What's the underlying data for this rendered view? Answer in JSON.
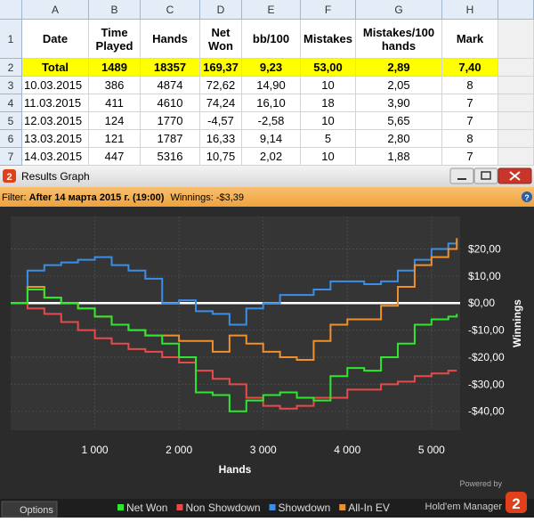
{
  "spreadsheet": {
    "columns": [
      "A",
      "B",
      "C",
      "D",
      "E",
      "F",
      "G",
      "H"
    ],
    "row_numbers": [
      "1",
      "2",
      "3",
      "4",
      "5",
      "6",
      "7"
    ],
    "header": [
      "Date",
      "Time Played",
      "Hands",
      "Net Won",
      "bb/100",
      "Mistakes",
      "Mistakes/100 hands",
      "Mark"
    ],
    "total": [
      "Total",
      "1489",
      "18357",
      "169,37",
      "9,23",
      "53,00",
      "2,89",
      "7,40"
    ],
    "rows": [
      [
        "10.03.2015",
        "386",
        "4874",
        "72,62",
        "14,90",
        "10",
        "2,05",
        "8"
      ],
      [
        "11.03.2015",
        "411",
        "4610",
        "74,24",
        "16,10",
        "18",
        "3,90",
        "7"
      ],
      [
        "12.03.2015",
        "124",
        "1770",
        "-4,57",
        "-2,58",
        "10",
        "5,65",
        "7"
      ],
      [
        "13.03.2015",
        "121",
        "1787",
        "16,33",
        "9,14",
        "5",
        "2,80",
        "8"
      ],
      [
        "14.03.2015",
        "447",
        "5316",
        "10,75",
        "2,02",
        "10",
        "1,88",
        "7"
      ]
    ]
  },
  "window": {
    "title": "Results Graph",
    "filter_label": "Filter:",
    "filter": "After 14 марта 2015 г. (19:00)",
    "winnings": "Winnings: -$3,39",
    "options": "Options",
    "powered_by": "Powered by",
    "brand": "Hold'em Manager"
  },
  "chart_data": {
    "type": "line",
    "x_label": "Hands",
    "y_label": "Winnings",
    "x": [
      0,
      200,
      400,
      600,
      800,
      1000,
      1200,
      1400,
      1600,
      1800,
      2000,
      2200,
      2400,
      2600,
      2800,
      3000,
      3200,
      3400,
      3600,
      3800,
      4000,
      4200,
      4400,
      4600,
      4800,
      5000,
      5200,
      5300
    ],
    "series": [
      {
        "name": "Net Won",
        "color": "#2ee82e",
        "values": [
          0,
          5,
          2,
          0,
          -2,
          -5,
          -8,
          -10,
          -12,
          -15,
          -20,
          -33,
          -34,
          -40,
          -36,
          -34,
          -33,
          -35,
          -36,
          -27,
          -24,
          -25,
          -20,
          -15,
          -8,
          -6,
          -5,
          -4
        ]
      },
      {
        "name": "Non Showdown",
        "color": "#e84a4a",
        "values": [
          0,
          -2,
          -4,
          -7,
          -10,
          -13,
          -15,
          -17,
          -18,
          -20,
          -22,
          -25,
          -28,
          -30,
          -35,
          -38,
          -39,
          -38,
          -35,
          -35,
          -32,
          -32,
          -30,
          -29,
          -27,
          -26,
          -25,
          -25
        ]
      },
      {
        "name": "Showdown",
        "color": "#3a8ee8",
        "values": [
          0,
          12,
          14,
          15,
          16,
          17,
          14,
          12,
          9,
          0,
          1,
          -3,
          -4,
          -8,
          -2,
          0,
          3,
          3,
          5,
          8,
          8,
          7,
          8,
          12,
          16,
          20,
          22,
          23
        ]
      },
      {
        "name": "All-In EV",
        "color": "#f0902a",
        "values": [
          0,
          6,
          2,
          0,
          -2,
          -5,
          -8,
          -10,
          -12,
          -12,
          -14,
          -14,
          -18,
          -12,
          -15,
          -18,
          -20,
          -21,
          -14,
          -8,
          -6,
          -6,
          -1,
          6,
          14,
          17,
          20,
          24
        ]
      }
    ],
    "xlim": [
      0,
      5340
    ],
    "xticks": [
      {
        "value": 1000,
        "label": "1 000"
      },
      {
        "value": 2000,
        "label": "2 000"
      },
      {
        "value": 3000,
        "label": "3 000"
      },
      {
        "value": 4000,
        "label": "4 000"
      },
      {
        "value": 5000,
        "label": "5 000"
      }
    ],
    "ylim": [
      -47,
      32
    ],
    "yticks": [
      {
        "value": -40,
        "label": "-$40,00"
      },
      {
        "value": -30,
        "label": "-$30,00"
      },
      {
        "value": -20,
        "label": "-$20,00"
      },
      {
        "value": -10,
        "label": "-$10,00"
      },
      {
        "value": 0,
        "label": "$0,00"
      },
      {
        "value": 10,
        "label": "$10,00"
      },
      {
        "value": 20,
        "label": "$20,00"
      }
    ],
    "grid": true
  }
}
